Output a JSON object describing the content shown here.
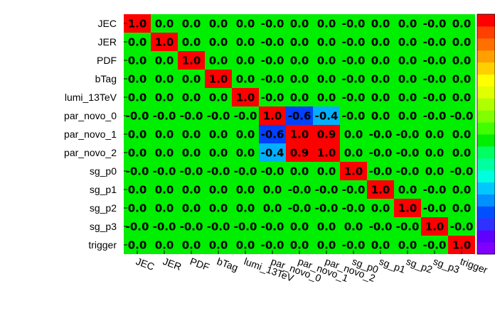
{
  "chart_data": {
    "type": "heatmap",
    "labels": [
      "JEC",
      "JER",
      "PDF",
      "bTag",
      "lumi_13TeV",
      "par_novo_0",
      "par_novo_1",
      "par_novo_2",
      "sg_p0",
      "sg_p1",
      "sg_p2",
      "sg_p3",
      "trigger"
    ],
    "value_labels": [
      [
        "1.0",
        "0.0",
        "0.0",
        "0.0",
        "0.0",
        "-0.0",
        "0.0",
        "0.0",
        "-0.0",
        "0.0",
        "0.0",
        "-0.0",
        "0.0"
      ],
      [
        "0.0",
        "1.0",
        "0.0",
        "0.0",
        "0.0",
        "-0.0",
        "0.0",
        "0.0",
        "-0.0",
        "0.0",
        "0.0",
        "-0.0",
        "0.0"
      ],
      [
        "0.0",
        "0.0",
        "1.0",
        "0.0",
        "0.0",
        "-0.0",
        "0.0",
        "0.0",
        "-0.0",
        "0.0",
        "0.0",
        "-0.0",
        "0.0"
      ],
      [
        "0.0",
        "0.0",
        "0.0",
        "1.0",
        "0.0",
        "-0.0",
        "0.0",
        "0.0",
        "-0.0",
        "0.0",
        "0.0",
        "-0.0",
        "0.0"
      ],
      [
        "0.0",
        "0.0",
        "0.0",
        "0.0",
        "1.0",
        "-0.0",
        "0.0",
        "0.0",
        "-0.0",
        "0.0",
        "0.0",
        "-0.0",
        "0.0"
      ],
      [
        "-0.0",
        "-0.0",
        "-0.0",
        "-0.0",
        "-0.0",
        "1.0",
        "-0.6",
        "-0.4",
        "-0.0",
        "0.0",
        "0.0",
        "-0.0",
        "-0.0"
      ],
      [
        "0.0",
        "0.0",
        "0.0",
        "0.0",
        "0.0",
        "-0.6",
        "1.0",
        "0.9",
        "0.0",
        "-0.0",
        "-0.0",
        "0.0",
        "0.0"
      ],
      [
        "0.0",
        "0.0",
        "0.0",
        "0.0",
        "0.0",
        "-0.4",
        "0.9",
        "1.0",
        "0.0",
        "-0.0",
        "-0.0",
        "0.0",
        "0.0"
      ],
      [
        "-0.0",
        "-0.0",
        "-0.0",
        "-0.0",
        "-0.0",
        "-0.0",
        "0.0",
        "0.0",
        "1.0",
        "-0.0",
        "-0.0",
        "0.0",
        "-0.0"
      ],
      [
        "0.0",
        "0.0",
        "0.0",
        "0.0",
        "0.0",
        "0.0",
        "-0.0",
        "-0.0",
        "-0.0",
        "1.0",
        "0.0",
        "-0.0",
        "0.0"
      ],
      [
        "0.0",
        "0.0",
        "0.0",
        "0.0",
        "0.0",
        "0.0",
        "-0.0",
        "-0.0",
        "-0.0",
        "0.0",
        "1.0",
        "-0.0",
        "0.0"
      ],
      [
        "-0.0",
        "-0.0",
        "-0.0",
        "-0.0",
        "-0.0",
        "-0.0",
        "0.0",
        "0.0",
        "0.0",
        "-0.0",
        "-0.0",
        "1.0",
        "-0.0"
      ],
      [
        "0.0",
        "0.0",
        "0.0",
        "0.0",
        "0.0",
        "-0.0",
        "0.0",
        "0.0",
        "-0.0",
        "0.0",
        "0.0",
        "-0.0",
        "1.0"
      ]
    ],
    "values": [
      [
        1.0,
        0.0,
        0.0,
        0.0,
        0.0,
        0.0,
        0.0,
        0.0,
        0.0,
        0.0,
        0.0,
        0.0,
        0.0
      ],
      [
        0.0,
        1.0,
        0.0,
        0.0,
        0.0,
        0.0,
        0.0,
        0.0,
        0.0,
        0.0,
        0.0,
        0.0,
        0.0
      ],
      [
        0.0,
        0.0,
        1.0,
        0.0,
        0.0,
        0.0,
        0.0,
        0.0,
        0.0,
        0.0,
        0.0,
        0.0,
        0.0
      ],
      [
        0.0,
        0.0,
        0.0,
        1.0,
        0.0,
        0.0,
        0.0,
        0.0,
        0.0,
        0.0,
        0.0,
        0.0,
        0.0
      ],
      [
        0.0,
        0.0,
        0.0,
        0.0,
        1.0,
        0.0,
        0.0,
        0.0,
        0.0,
        0.0,
        0.0,
        0.0,
        0.0
      ],
      [
        0.0,
        0.0,
        0.0,
        0.0,
        0.0,
        1.0,
        -0.6,
        -0.4,
        0.0,
        0.0,
        0.0,
        0.0,
        0.0
      ],
      [
        0.0,
        0.0,
        0.0,
        0.0,
        0.0,
        -0.6,
        1.0,
        0.9,
        0.0,
        0.0,
        0.0,
        0.0,
        0.0
      ],
      [
        0.0,
        0.0,
        0.0,
        0.0,
        0.0,
        -0.4,
        0.9,
        1.0,
        0.0,
        0.0,
        0.0,
        0.0,
        0.0
      ],
      [
        0.0,
        0.0,
        0.0,
        0.0,
        0.0,
        0.0,
        0.0,
        0.0,
        1.0,
        0.0,
        0.0,
        0.0,
        0.0
      ],
      [
        0.0,
        0.0,
        0.0,
        0.0,
        0.0,
        0.0,
        0.0,
        0.0,
        0.0,
        1.0,
        0.0,
        0.0,
        0.0
      ],
      [
        0.0,
        0.0,
        0.0,
        0.0,
        0.0,
        0.0,
        0.0,
        0.0,
        0.0,
        0.0,
        1.0,
        0.0,
        0.0
      ],
      [
        0.0,
        0.0,
        0.0,
        0.0,
        0.0,
        0.0,
        0.0,
        0.0,
        0.0,
        0.0,
        0.0,
        1.0,
        0.0
      ],
      [
        0.0,
        0.0,
        0.0,
        0.0,
        0.0,
        0.0,
        0.0,
        0.0,
        0.0,
        0.0,
        0.0,
        0.0,
        1.0
      ]
    ],
    "zlim": [
      -1,
      1
    ],
    "colors": {
      "diagonal": "#ff0000",
      "strong_positive": "#ff0000",
      "neutral": "#00ee00",
      "minus_0_6": "#0040ff",
      "minus_0_4": "#00b0ff"
    },
    "palette": [
      "#8000ff",
      "#6000ff",
      "#3030ff",
      "#0050ff",
      "#0090ff",
      "#00c8ff",
      "#00ffe0",
      "#00ffa0",
      "#00ff60",
      "#00ee00",
      "#40ff00",
      "#80ff00",
      "#b0ff00",
      "#e0ff00",
      "#ffff00",
      "#ffd000",
      "#ffa000",
      "#ff7000",
      "#ff4000",
      "#ff0000"
    ],
    "legend": "right",
    "grid": false
  }
}
